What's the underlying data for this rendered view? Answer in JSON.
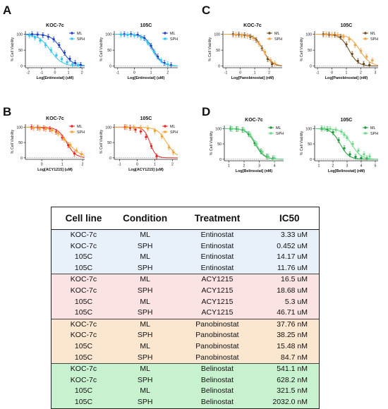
{
  "panel_letters": [
    "A",
    "B",
    "C",
    "D"
  ],
  "chart_data": [
    {
      "type": "line",
      "panel": "A",
      "title": "KOC-7c",
      "xlabel": "Log[Entinostat] (uM)",
      "ylabel": "% Cell Viability",
      "xlim": [
        -2.2,
        2.2
      ],
      "ylim": [
        -5,
        110
      ],
      "xticks": [
        -2,
        -1,
        0,
        1,
        2
      ],
      "yticks": [
        0,
        50,
        100
      ],
      "legend": "top-right",
      "grid": false,
      "baseline": 0,
      "series": [
        {
          "name": "ML",
          "color": "#1f3fbf",
          "logIC50": 0.52,
          "hill": 1.1,
          "top": 100,
          "bottom": 0,
          "x": [
            -1.7,
            -1.3,
            -0.9,
            -0.5,
            -0.1,
            0.3,
            0.7,
            1.1,
            1.5,
            1.9
          ],
          "y": [
            100,
            99,
            97,
            92,
            84,
            66,
            42,
            23,
            10,
            4
          ]
        },
        {
          "name": "SPH",
          "color": "#35c4ee",
          "logIC50": -0.35,
          "hill": 1.0,
          "top": 100,
          "bottom": 0,
          "x": [
            -1.9,
            -1.5,
            -1.1,
            -0.7,
            -0.3,
            0.1,
            0.5,
            0.9,
            1.3,
            1.7
          ],
          "y": [
            96,
            90,
            80,
            66,
            50,
            34,
            22,
            12,
            6,
            3
          ]
        }
      ]
    },
    {
      "type": "line",
      "panel": "A",
      "title": "105C",
      "xlabel": "Log[Entinostat] (uM)",
      "ylabel": "% Cell Viability",
      "xlim": [
        -1.2,
        2.6
      ],
      "ylim": [
        -5,
        110
      ],
      "xticks": [
        -1,
        0,
        1,
        2
      ],
      "yticks": [
        0,
        50,
        100
      ],
      "legend": "top-right",
      "grid": false,
      "baseline": 0,
      "series": [
        {
          "name": "ML",
          "color": "#1f3fbf",
          "logIC50": 1.15,
          "hill": 1.6,
          "top": 100,
          "bottom": 0,
          "x": [
            -0.6,
            -0.2,
            0.2,
            0.6,
            1.0,
            1.4,
            1.8,
            2.2
          ],
          "y": [
            100,
            100,
            98,
            88,
            64,
            30,
            10,
            3
          ]
        },
        {
          "name": "SPH",
          "color": "#35c4ee",
          "logIC50": 1.07,
          "hill": 1.5,
          "top": 100,
          "bottom": 0,
          "x": [
            -0.8,
            -0.4,
            0.0,
            0.4,
            0.8,
            1.2,
            1.6,
            2.0
          ],
          "y": [
            99,
            98,
            96,
            90,
            74,
            45,
            18,
            6
          ]
        }
      ]
    },
    {
      "type": "line",
      "panel": "B",
      "title": "KOC-7c",
      "xlabel": "Log[ACY1215] (uM)",
      "ylabel": "% Cell Viability",
      "xlim": [
        -0.8,
        2.1
      ],
      "ylim": [
        -5,
        110
      ],
      "xticks": [
        0,
        1,
        2
      ],
      "yticks": [
        0,
        50,
        100
      ],
      "legend": "top-right",
      "grid": false,
      "baseline": 0,
      "series": [
        {
          "name": "ML",
          "color": "#e52626",
          "logIC50": 1.22,
          "hill": 2.0,
          "top": 100,
          "bottom": 0,
          "x": [
            -0.5,
            -0.2,
            0.1,
            0.4,
            0.7,
            1.0,
            1.3,
            1.6
          ],
          "y": [
            100,
            99,
            97,
            94,
            85,
            66,
            41,
            14
          ]
        },
        {
          "name": "SPH",
          "color": "#f4a23a",
          "logIC50": 1.27,
          "hill": 1.3,
          "top": 100,
          "bottom": 0,
          "x": [
            -0.4,
            -0.1,
            0.2,
            0.5,
            0.8,
            1.1,
            1.4,
            1.7,
            1.95
          ],
          "y": [
            97,
            95,
            94,
            90,
            80,
            60,
            42,
            24,
            12
          ]
        }
      ]
    },
    {
      "type": "line",
      "panel": "B",
      "title": "105C",
      "xlabel": "Log[ACY1215] (uM)",
      "ylabel": "% Cell Viability",
      "xlim": [
        -1.3,
        2.3
      ],
      "ylim": [
        -5,
        110
      ],
      "xticks": [
        -1,
        0,
        1,
        2
      ],
      "yticks": [
        0,
        50,
        100
      ],
      "legend": "top-right",
      "grid": false,
      "baseline": 0,
      "series": [
        {
          "name": "ML",
          "color": "#e52626",
          "logIC50": 0.72,
          "hill": 2.6,
          "top": 100,
          "bottom": 0,
          "x": [
            -0.7,
            -0.4,
            -0.1,
            0.2,
            0.5,
            0.8,
            1.1
          ],
          "y": [
            100,
            98,
            92,
            86,
            68,
            38,
            5
          ]
        },
        {
          "name": "SPH",
          "color": "#f4a23a",
          "logIC50": 1.67,
          "hill": 1.6,
          "top": 100,
          "bottom": 0,
          "x": [
            -0.6,
            -0.2,
            0.2,
            0.6,
            1.0,
            1.4,
            1.8,
            2.05
          ],
          "y": [
            100,
            99,
            98,
            96,
            88,
            70,
            34,
            18
          ]
        }
      ]
    },
    {
      "type": "line",
      "panel": "C",
      "title": "KOC-7c",
      "xlabel": "Log[Panobinostat] (nM)",
      "ylabel": "% Cell Viability",
      "xlim": [
        -1.2,
        2.9
      ],
      "ylim": [
        -5,
        110
      ],
      "xticks": [
        -1,
        0,
        1,
        2
      ],
      "yticks": [
        0,
        50,
        100
      ],
      "legend": "top-right",
      "grid": false,
      "baseline": 0,
      "series": [
        {
          "name": "ML",
          "color": "#6b4a1f",
          "logIC50": 1.58,
          "hill": 1.5,
          "top": 100,
          "bottom": 0,
          "x": [
            -0.5,
            -0.1,
            0.3,
            0.7,
            1.1,
            1.5,
            1.9,
            2.2
          ],
          "y": [
            100,
            99,
            97,
            92,
            82,
            56,
            22,
            6
          ]
        },
        {
          "name": "SPH",
          "color": "#f0a24a",
          "logIC50": 1.58,
          "hill": 1.3,
          "top": 100,
          "bottom": 0,
          "x": [
            -0.3,
            0.1,
            0.5,
            0.9,
            1.3,
            1.7,
            2.1,
            2.4
          ],
          "y": [
            98,
            96,
            95,
            88,
            70,
            44,
            18,
            8
          ]
        }
      ]
    },
    {
      "type": "line",
      "panel": "C",
      "title": "105C",
      "xlabel": "Log[Panobinostat] (nM)",
      "ylabel": "% Cell Viability",
      "xlim": [
        -1.2,
        3.2
      ],
      "ylim": [
        -5,
        110
      ],
      "xticks": [
        -1,
        0,
        1,
        2,
        3
      ],
      "yticks": [
        0,
        50,
        100
      ],
      "legend": "top-right",
      "grid": false,
      "baseline": 0,
      "series": [
        {
          "name": "ML",
          "color": "#6b4a1f",
          "logIC50": 1.19,
          "hill": 1.4,
          "top": 100,
          "bottom": 0,
          "x": [
            -0.6,
            -0.2,
            0.2,
            0.6,
            1.0,
            1.4,
            1.8,
            2.2,
            2.6
          ],
          "y": [
            100,
            99,
            98,
            92,
            68,
            38,
            16,
            7,
            3
          ]
        },
        {
          "name": "SPH",
          "color": "#f0a24a",
          "logIC50": 1.93,
          "hill": 1.2,
          "top": 100,
          "bottom": 0,
          "x": [
            -0.4,
            0.0,
            0.4,
            0.8,
            1.2,
            1.6,
            2.0,
            2.4,
            2.8
          ],
          "y": [
            100,
            98,
            97,
            92,
            84,
            66,
            48,
            30,
            18
          ]
        }
      ]
    },
    {
      "type": "line",
      "panel": "D",
      "title": "KOC-7c",
      "xlabel": "Log[Belinostat] (nM)",
      "ylabel": "% Cell Viability",
      "xlim": [
        0.7,
        4.6
      ],
      "ylim": [
        -5,
        110
      ],
      "xticks": [
        1,
        2,
        3,
        4
      ],
      "yticks": [
        0,
        50,
        100
      ],
      "legend": "top-right",
      "grid": false,
      "baseline": 0,
      "series": [
        {
          "name": "ML",
          "color": "#1f9a3a",
          "logIC50": 2.73,
          "hill": 1.5,
          "top": 100,
          "bottom": 0,
          "x": [
            1.1,
            1.5,
            1.9,
            2.3,
            2.7,
            3.1,
            3.5,
            3.9
          ],
          "y": [
            100,
            99,
            96,
            82,
            52,
            26,
            9,
            3
          ]
        },
        {
          "name": "SPH",
          "color": "#6ed88a",
          "logIC50": 2.8,
          "hill": 1.5,
          "top": 100,
          "bottom": 0,
          "x": [
            1.2,
            1.6,
            2.0,
            2.4,
            2.8,
            3.2,
            3.6,
            4.0
          ],
          "y": [
            99,
            98,
            95,
            80,
            50,
            24,
            8,
            3
          ]
        }
      ]
    },
    {
      "type": "line",
      "panel": "D",
      "title": "105C",
      "xlabel": "Log[Belinostat] (nM)",
      "ylabel": "% Cell Viability",
      "xlim": [
        0.7,
        5.2
      ],
      "ylim": [
        -5,
        110
      ],
      "xticks": [
        1,
        2,
        3,
        4,
        5
      ],
      "yticks": [
        0,
        50,
        100
      ],
      "legend": "top-right",
      "grid": false,
      "baseline": 0,
      "series": [
        {
          "name": "ML",
          "color": "#1f9a3a",
          "logIC50": 2.51,
          "hill": 1.4,
          "top": 100,
          "bottom": 0,
          "x": [
            1.2,
            1.6,
            2.0,
            2.4,
            2.8,
            3.2,
            3.6,
            4.0,
            4.4
          ],
          "y": [
            100,
            98,
            88,
            62,
            36,
            16,
            8,
            4,
            3
          ]
        },
        {
          "name": "SPH",
          "color": "#6ed88a",
          "logIC50": 3.31,
          "hill": 1.3,
          "top": 100,
          "bottom": 0,
          "x": [
            1.4,
            1.8,
            2.2,
            2.6,
            2.8,
            3.0,
            3.4,
            3.8,
            4.2,
            4.6
          ],
          "y": [
            100,
            99,
            96,
            90,
            80,
            70,
            50,
            28,
            16,
            9
          ]
        }
      ]
    },
    {
      "type": "table",
      "columns": [
        "Cell line",
        "Condition",
        "Treatment",
        "IC50"
      ],
      "rows": [
        [
          "KOC-7c",
          "ML",
          "Entinostat",
          "3.33 uM"
        ],
        [
          "KOC-7c",
          "SPH",
          "Entinostat",
          "0.452 uM"
        ],
        [
          "105C",
          "ML",
          "Entinostat",
          "14.17 uM"
        ],
        [
          "105C",
          "SPH",
          "Entinostat",
          "11.76 uM"
        ],
        [
          "KOC-7c",
          "ML",
          "ACY1215",
          "16.5 uM"
        ],
        [
          "KOC-7c",
          "SPH",
          "ACY1215",
          "18.68 uM"
        ],
        [
          "105C",
          "ML",
          "ACY1215",
          "5.3 uM"
        ],
        [
          "105C",
          "SPH",
          "ACY1215",
          "46.71 uM"
        ],
        [
          "KOC-7c",
          "ML",
          "Panobinostat",
          "37.76 nM"
        ],
        [
          "KOC-7c",
          "SPH",
          "Panobinostat",
          "38.25 nM"
        ],
        [
          "105C",
          "ML",
          "Panobinostat",
          "15.48 nM"
        ],
        [
          "105C",
          "SPH",
          "Panobinostat",
          "84.7 nM"
        ],
        [
          "KOC-7c",
          "ML",
          "Belinostat",
          "541.1 nM"
        ],
        [
          "KOC-7c",
          "SPH",
          "Belinostat",
          "628.2 nM"
        ],
        [
          "105C",
          "ML",
          "Belinostat",
          "321.5 nM"
        ],
        [
          "105C",
          "SPH",
          "Belinostat",
          "2032.0 nM"
        ]
      ],
      "row_group_colors": [
        "#e8f0fa",
        "#fbe3e3",
        "#fbe6cf",
        "#c8f2cf"
      ]
    }
  ]
}
